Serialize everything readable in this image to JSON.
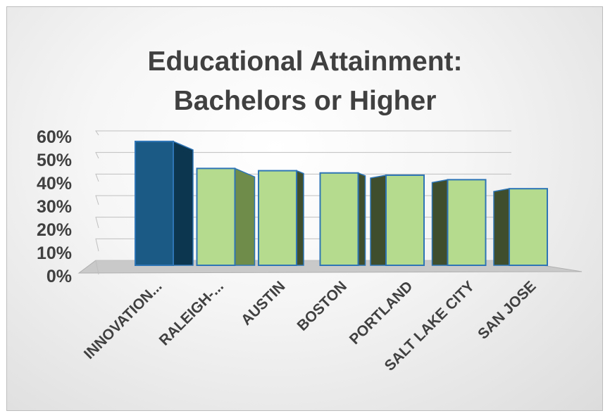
{
  "chart_data": {
    "type": "bar",
    "title": [
      "Educational Attainment:",
      "Bachelors or Higher"
    ],
    "categories": [
      "INNOVATION...",
      "RALEIGH-...",
      "AUSTIN",
      "BOSTON",
      "PORTLAND",
      "SALT LAKE CITY",
      "SAN JOSE"
    ],
    "values": [
      55,
      43,
      42,
      41,
      40,
      38,
      34
    ],
    "value_format": "percent",
    "yticks": [
      "0%",
      "10%",
      "20%",
      "30%",
      "40%",
      "50%",
      "60%"
    ],
    "ylim": [
      0,
      60
    ],
    "grid": true,
    "legend": "none",
    "three_d": true,
    "colors": {
      "highlight_front": "#1a5a85",
      "highlight_side": "#0c3550",
      "bar_front": "#b5dc8e",
      "bar_side_light": "#6f8c4a",
      "bar_side_dark": "#3f4f2d",
      "bar_border": "#2e75b6",
      "floor": "#c9c9c9",
      "text": "#404040"
    }
  }
}
